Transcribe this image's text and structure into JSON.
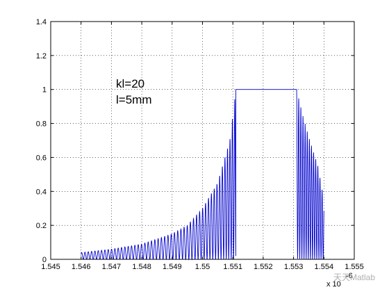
{
  "chart_data": {
    "type": "line",
    "title": "",
    "xlabel": "",
    "ylabel": "",
    "xlim": [
      1.545,
      1.555
    ],
    "ylim": [
      0,
      1.4
    ],
    "xticks": [
      "1.545",
      "1.546",
      "1.547",
      "1.548",
      "1.549",
      "1.55",
      "1.551",
      "1.552",
      "1.553",
      "1.554",
      "1.555"
    ],
    "yticks": [
      "0",
      "0.2",
      "0.4",
      "0.6",
      "0.8",
      "1",
      "1.2",
      "1.4"
    ],
    "x_exponent_label": "x 10",
    "x_exponent_power": "-6",
    "grid": true,
    "grid_style": "dotted",
    "line_color": "#0000cc",
    "annotations": [
      "kl=20",
      "l=5mm"
    ],
    "series": [
      {
        "style": "oscillating-sidelobes",
        "x_start": 1.546,
        "x_end": 1.554,
        "plateau_start": 1.5511,
        "plateau_end": 1.5531,
        "plateau_value": 1.0,
        "left_envelope": [
          [
            1.546,
            0.04
          ],
          [
            1.547,
            0.06
          ],
          [
            1.548,
            0.09
          ],
          [
            1.549,
            0.15
          ],
          [
            1.5495,
            0.2
          ],
          [
            1.55,
            0.3
          ],
          [
            1.5505,
            0.45
          ],
          [
            1.5509,
            0.7
          ],
          [
            1.5511,
            1.0
          ]
        ],
        "right_envelope": [
          [
            1.5531,
            1.0
          ],
          [
            1.5533,
            0.85
          ],
          [
            1.5535,
            0.72
          ],
          [
            1.5538,
            0.55
          ],
          [
            1.554,
            0.35
          ]
        ]
      }
    ],
    "watermark": "天天Matlab"
  }
}
